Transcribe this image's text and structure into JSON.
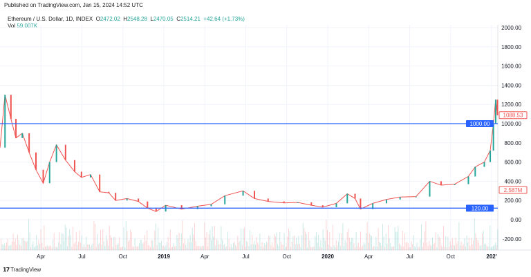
{
  "header": {
    "published": "Published on TradingView.com, Jan 15, 2024 14:52 UTC",
    "symbol": "Ethereum / U.S. Dollar, 1D, INDEX",
    "o_label": "O",
    "o": "2472.02",
    "h_label": "H",
    "h": "2548.28",
    "l_label": "L",
    "l": "2470.05",
    "c_label": "C",
    "c": "2514.21",
    "change": "+42.64 (+1.73%)",
    "vol_label": "Vol",
    "vol": "59.007K"
  },
  "brand": "TradingView",
  "colors": {
    "up": "#26a69a",
    "down": "#ef5350",
    "hline": "#2962ff"
  },
  "chart_data": {
    "type": "line",
    "ylim": [
      -300,
      2100
    ],
    "y_ticks": [
      "2000.00",
      "1800.00",
      "1600.00",
      "1400.00",
      "1200.00",
      "1000.00",
      "800.00",
      "600.00",
      "400.00",
      "200.00",
      "0.00",
      "-200.00"
    ],
    "y_tick_values": [
      2000,
      1800,
      1600,
      1400,
      1200,
      1000,
      800,
      600,
      400,
      200,
      0,
      -200
    ],
    "x_ticks": [
      {
        "label": "Apr",
        "date": "2018-04-01",
        "bold": false
      },
      {
        "label": "Jul",
        "date": "2018-07-01",
        "bold": false
      },
      {
        "label": "Oct",
        "date": "2018-10-01",
        "bold": false
      },
      {
        "label": "2019",
        "date": "2019-01-01",
        "bold": true
      },
      {
        "label": "Apr",
        "date": "2019-04-01",
        "bold": false
      },
      {
        "label": "Jul",
        "date": "2019-07-01",
        "bold": false
      },
      {
        "label": "Oct",
        "date": "2019-10-01",
        "bold": false
      },
      {
        "label": "2020",
        "date": "2020-01-01",
        "bold": true
      },
      {
        "label": "Apr",
        "date": "2020-04-01",
        "bold": false
      },
      {
        "label": "Jul",
        "date": "2020-07-01",
        "bold": false
      },
      {
        "label": "Oct",
        "date": "2020-10-01",
        "bold": false
      },
      {
        "label": "202'",
        "date": "2021-01-01",
        "bold": true
      }
    ],
    "series": [
      {
        "x": [
          "2018-01-01",
          "2018-01-12",
          "2018-01-25",
          "2018-02-06",
          "2018-02-20",
          "2018-03-05",
          "2018-03-20",
          "2018-04-06",
          "2018-04-20",
          "2018-05-05",
          "2018-05-25",
          "2018-06-15",
          "2018-06-30",
          "2018-07-20",
          "2018-08-10",
          "2018-08-30",
          "2018-09-15",
          "2018-10-10",
          "2018-11-05",
          "2018-11-25",
          "2018-12-14",
          "2019-01-05",
          "2019-02-10",
          "2019-03-15",
          "2019-04-15",
          "2019-05-15",
          "2019-06-25",
          "2019-07-20",
          "2019-08-20",
          "2019-09-25",
          "2019-10-25",
          "2019-11-25",
          "2019-12-20",
          "2020-01-20",
          "2020-02-14",
          "2020-03-01",
          "2020-03-13",
          "2020-04-10",
          "2020-05-10",
          "2020-06-10",
          "2020-07-15",
          "2020-08-15",
          "2020-09-10",
          "2020-10-10",
          "2020-11-10",
          "2020-11-25",
          "2020-12-15",
          "2020-12-28",
          "2021-01-05",
          "2021-01-10",
          "2021-01-14"
        ],
        "y": [
          750,
          1300,
          1050,
          850,
          900,
          700,
          520,
          380,
          600,
          780,
          620,
          500,
          440,
          470,
          290,
          280,
          200,
          220,
          190,
          120,
          85,
          150,
          110,
          140,
          160,
          250,
          300,
          220,
          190,
          175,
          180,
          150,
          130,
          170,
          270,
          220,
          110,
          170,
          210,
          235,
          240,
          400,
          360,
          370,
          450,
          550,
          600,
          720,
          1000,
          1250,
          1088.53
        ]
      }
    ],
    "volume_ylabel": "2.587M",
    "horizontal_lines": [
      {
        "value": 1000,
        "label": "1000.00"
      },
      {
        "value": 120,
        "label": "120.00"
      }
    ],
    "last_price": {
      "value": 1088.53,
      "label": "1088.53"
    },
    "grid": true
  }
}
